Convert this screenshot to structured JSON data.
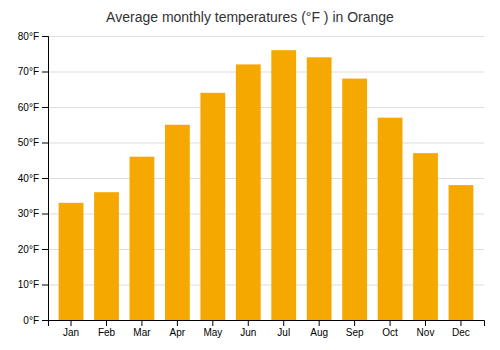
{
  "chart_data": {
    "type": "bar",
    "title": "Average monthly temperatures (°F ) in Orange",
    "categories": [
      "Jan",
      "Feb",
      "Mar",
      "Apr",
      "May",
      "Jun",
      "Jul",
      "Aug",
      "Sep",
      "Oct",
      "Nov",
      "Dec"
    ],
    "values": [
      33,
      36,
      46,
      55,
      64,
      72,
      76,
      74,
      68,
      57,
      47,
      38
    ],
    "color": "#F5A800",
    "ylim": [
      0,
      80
    ],
    "yticks": [
      {
        "value": 0,
        "label": "0°F"
      },
      {
        "value": 10,
        "label": "10°F"
      },
      {
        "value": 20,
        "label": "20°F"
      },
      {
        "value": 30,
        "label": "30°F"
      },
      {
        "value": 40,
        "label": "40°F"
      },
      {
        "value": 50,
        "label": "50°F"
      },
      {
        "value": 60,
        "label": "60°F"
      },
      {
        "value": 70,
        "label": "70°F"
      },
      {
        "value": 80,
        "label": "80°F"
      }
    ],
    "grid": true
  }
}
